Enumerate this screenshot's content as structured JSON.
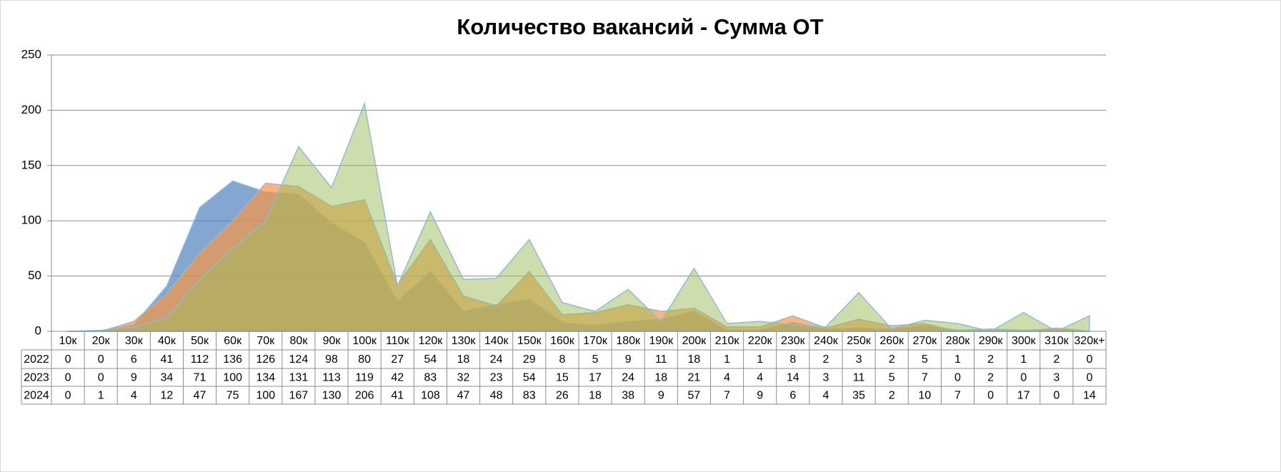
{
  "chart_data": {
    "type": "area",
    "title": "Количество вакансий - Сумма ОТ",
    "categories": [
      "10к",
      "20к",
      "30к",
      "40к",
      "50к",
      "60к",
      "70к",
      "80к",
      "90к",
      "100к",
      "110к",
      "120к",
      "130к",
      "140к",
      "150к",
      "160к",
      "170к",
      "180к",
      "190к",
      "200к",
      "210к",
      "220к",
      "230к",
      "240к",
      "250к",
      "260к",
      "270к",
      "280к",
      "290к",
      "300к",
      "310к",
      "320к+"
    ],
    "series": [
      {
        "name": "2022",
        "color": "#4f81bd",
        "values": [
          0,
          0,
          6,
          41,
          112,
          136,
          126,
          124,
          98,
          80,
          27,
          54,
          18,
          24,
          29,
          8,
          5,
          9,
          11,
          18,
          1,
          1,
          8,
          2,
          3,
          2,
          5,
          1,
          2,
          1,
          2,
          0
        ]
      },
      {
        "name": "2023",
        "color": "#f79646",
        "values": [
          0,
          0,
          9,
          34,
          71,
          100,
          134,
          131,
          113,
          119,
          42,
          83,
          32,
          23,
          54,
          15,
          17,
          24,
          18,
          21,
          4,
          4,
          14,
          3,
          11,
          5,
          7,
          0,
          2,
          0,
          3,
          0
        ]
      },
      {
        "name": "2024",
        "color": "#9bbb59",
        "values": [
          0,
          1,
          4,
          12,
          47,
          75,
          100,
          167,
          130,
          206,
          41,
          108,
          47,
          48,
          83,
          26,
          18,
          38,
          9,
          57,
          7,
          9,
          6,
          4,
          35,
          2,
          10,
          7,
          0,
          17,
          0,
          14
        ]
      }
    ],
    "ylim": [
      0,
      250
    ],
    "yticks": [
      0,
      50,
      100,
      150,
      200,
      250
    ],
    "grid": true
  }
}
